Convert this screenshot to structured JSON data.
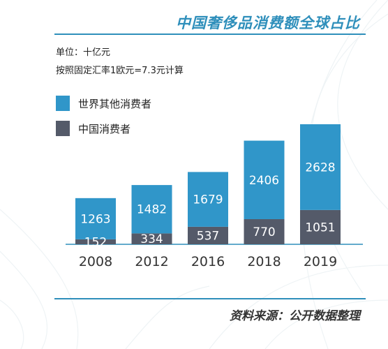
{
  "header": {
    "title": "中国奢侈品消费额全球占比",
    "unit_note": "单位：十亿元",
    "rate_note": "按照固定汇率1欧元=7.3元计算"
  },
  "footer": {
    "source": "资料来源：公开数据整理"
  },
  "colors": {
    "accent": "#2f8fbb",
    "world": "#3096c9",
    "china": "#545a69",
    "axis": "#2f8fbb"
  },
  "chart_data": {
    "type": "bar",
    "stacked": true,
    "categories": [
      "2008",
      "2012",
      "2016",
      "2018",
      "2019"
    ],
    "series": [
      {
        "name": "中国消费者",
        "values": [
          152,
          334,
          537,
          770,
          1051
        ]
      },
      {
        "name": "世界其他消费者",
        "values": [
          1263,
          1482,
          1679,
          2406,
          2628
        ]
      }
    ],
    "legend": [
      "世界其他消费者",
      "中国消费者"
    ],
    "legend_position": "top-left",
    "grid": false,
    "xlabel": "",
    "ylabel": ""
  }
}
